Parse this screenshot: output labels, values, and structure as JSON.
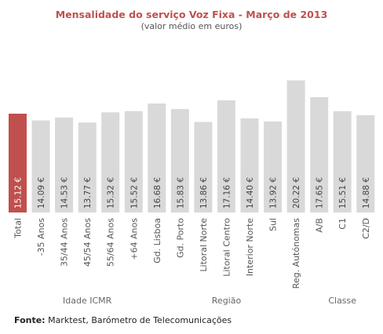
{
  "chart_data": {
    "type": "bar",
    "title": "Mensalidade do serviço Voz Fixa - Março de 2013",
    "subtitle": "(valor médio em euros)",
    "categories": [
      "Total",
      "-35 Anos",
      "35/44 Anos",
      "45/54 Anos",
      "55/64 Anos",
      "+64 Anos",
      "Gd. Lisboa",
      "Gd. Porto",
      "Litoral Norte",
      "Litoral Centro",
      "Interior Norte",
      "Sul",
      "Reg. Autónomas",
      "A/B",
      "C1",
      "C2/D"
    ],
    "values": [
      15.12,
      14.09,
      14.53,
      13.77,
      15.32,
      15.52,
      16.68,
      15.83,
      13.86,
      17.16,
      14.4,
      13.92,
      20.22,
      17.65,
      15.51,
      14.88
    ],
    "value_labels": [
      "15.12 €",
      "14.09 €",
      "14.53 €",
      "13.77 €",
      "15.32 €",
      "15.52 €",
      "16.68 €",
      "15.83 €",
      "13.86 €",
      "17.16 €",
      "14.40 €",
      "13.92 €",
      "20.22 €",
      "17.65 €",
      "15.51 €",
      "14.88 €"
    ],
    "groups": [
      {
        "label": "Idade ICMR",
        "from": 1,
        "to": 5
      },
      {
        "label": "Região",
        "from": 6,
        "to": 12
      },
      {
        "label": "Classe",
        "from": 13,
        "to": 15
      }
    ],
    "highlight_index": 0,
    "colors": {
      "highlight": "#c0504d",
      "bar": "#d9d9d9",
      "title": "#c0504d"
    },
    "ylim": [
      0,
      21
    ],
    "grid": false,
    "legend": "none"
  },
  "source": {
    "label": "Fonte:",
    "text": " Marktest, Barómetro de Telecomunicações"
  }
}
